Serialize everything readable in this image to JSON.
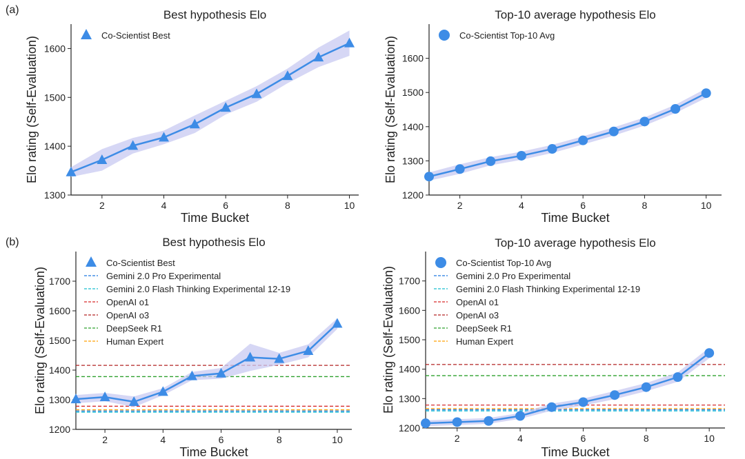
{
  "panel_labels": [
    "(a)",
    "(b)"
  ],
  "chart_data": [
    {
      "type": "line",
      "title": "Best hypothesis Elo",
      "xlabel": "Time Bucket",
      "ylabel": "Elo rating (Self-Evaluation)",
      "xlim": [
        1,
        10.3
      ],
      "ylim": [
        1300,
        1650
      ],
      "xticks": [
        2,
        4,
        6,
        8,
        10
      ],
      "yticks": [
        1300,
        1400,
        1500,
        1600
      ],
      "grid": false,
      "legend_position": "top-left",
      "colors": {
        "series": "#3d8ce6",
        "band": "#c8c9f2"
      },
      "series": [
        {
          "name": "Co-Scientist Best",
          "marker": "triangle",
          "x": [
            1,
            2,
            3,
            4,
            5,
            6,
            7,
            8,
            9,
            10
          ],
          "values": [
            1347,
            1372,
            1401,
            1418,
            1445,
            1479,
            1507,
            1544,
            1582,
            1611
          ],
          "band_halfwidth": [
            10,
            22,
            16,
            14,
            18,
            14,
            16,
            15,
            20,
            26
          ]
        }
      ],
      "reference_lines": []
    },
    {
      "type": "line",
      "title": "Top-10 average hypothesis Elo",
      "xlabel": "Time Bucket",
      "ylabel": "Elo rating (Self-Evaluation)",
      "xlim": [
        1,
        10.5
      ],
      "ylim": [
        1200,
        1700
      ],
      "xticks": [
        2,
        4,
        6,
        8,
        10
      ],
      "yticks": [
        1200,
        1300,
        1400,
        1500,
        1600
      ],
      "grid": false,
      "legend_position": "top-left",
      "colors": {
        "series": "#3d8ce6",
        "band": "#c8c9f2"
      },
      "series": [
        {
          "name": "Co-Scientist Top-10 Avg",
          "marker": "circle",
          "x": [
            1,
            2,
            3,
            4,
            5,
            6,
            7,
            8,
            9,
            10
          ],
          "values": [
            1254,
            1276,
            1299,
            1315,
            1335,
            1360,
            1386,
            1415,
            1452,
            1498
          ],
          "band_halfwidth": [
            12,
            14,
            12,
            12,
            12,
            12,
            12,
            12,
            12,
            14
          ]
        }
      ],
      "reference_lines": []
    },
    {
      "type": "line",
      "title": "Best hypothesis Elo",
      "xlabel": "Time Bucket",
      "ylabel": "Elo rating (Self-Evaluation)",
      "xlim": [
        1,
        10.5
      ],
      "ylim": [
        1200,
        1800
      ],
      "xticks": [
        2,
        4,
        6,
        8,
        10
      ],
      "yticks": [
        1200,
        1300,
        1400,
        1500,
        1600,
        1700
      ],
      "grid": false,
      "legend_position": "top-left",
      "colors": {
        "series": "#3d8ce6",
        "band": "#c8c9f2"
      },
      "series": [
        {
          "name": "Co-Scientist Best",
          "marker": "triangle",
          "x": [
            1,
            2,
            3,
            4,
            5,
            6,
            7,
            8,
            9,
            10
          ],
          "values": [
            1302,
            1309,
            1293,
            1327,
            1380,
            1389,
            1443,
            1438,
            1465,
            1557
          ],
          "band_halfwidth": [
            14,
            14,
            18,
            12,
            14,
            18,
            46,
            20,
            22,
            18
          ]
        }
      ],
      "reference_lines": [
        {
          "name": "Gemini 2.0 Pro Experimental",
          "value": 1262,
          "color": "#1f77e0"
        },
        {
          "name": "Gemini 2.0 Flash Thinking Experimental 12-19",
          "value": 1258,
          "color": "#17becf"
        },
        {
          "name": "OpenAI o1",
          "value": 1278,
          "color": "#d62728"
        },
        {
          "name": "OpenAI o3",
          "value": 1416,
          "color": "#b22222"
        },
        {
          "name": "DeepSeek R1",
          "value": 1378,
          "color": "#2ca02c"
        },
        {
          "name": "Human Expert",
          "value": 1266,
          "color": "#ff9f00"
        }
      ]
    },
    {
      "type": "line",
      "title": "Top-10 average hypothesis Elo",
      "xlabel": "Time Bucket",
      "ylabel": "Elo rating (Self-Evaluation)",
      "xlim": [
        1,
        10.5
      ],
      "ylim": [
        1200,
        1800
      ],
      "xticks": [
        2,
        4,
        6,
        8,
        10
      ],
      "yticks": [
        1200,
        1300,
        1400,
        1500,
        1600,
        1700
      ],
      "grid": false,
      "legend_position": "top-left",
      "colors": {
        "series": "#3d8ce6",
        "band": "#c8c9f2"
      },
      "series": [
        {
          "name": "Co-Scientist Top-10 Avg",
          "marker": "circle",
          "x": [
            1,
            2,
            3,
            4,
            5,
            6,
            7,
            8,
            9,
            10
          ],
          "values": [
            1216,
            1220,
            1224,
            1241,
            1271,
            1288,
            1312,
            1339,
            1373,
            1455
          ],
          "band_halfwidth": [
            10,
            10,
            10,
            10,
            12,
            12,
            14,
            14,
            16,
            18
          ]
        }
      ],
      "reference_lines": [
        {
          "name": "Gemini 2.0 Pro Experimental",
          "value": 1262,
          "color": "#1f77e0"
        },
        {
          "name": "Gemini 2.0 Flash Thinking Experimental 12-19",
          "value": 1258,
          "color": "#17becf"
        },
        {
          "name": "OpenAI o1",
          "value": 1278,
          "color": "#d62728"
        },
        {
          "name": "OpenAI o3",
          "value": 1416,
          "color": "#b22222"
        },
        {
          "name": "DeepSeek R1",
          "value": 1378,
          "color": "#2ca02c"
        },
        {
          "name": "Human Expert",
          "value": 1266,
          "color": "#ff9f00"
        }
      ]
    }
  ]
}
